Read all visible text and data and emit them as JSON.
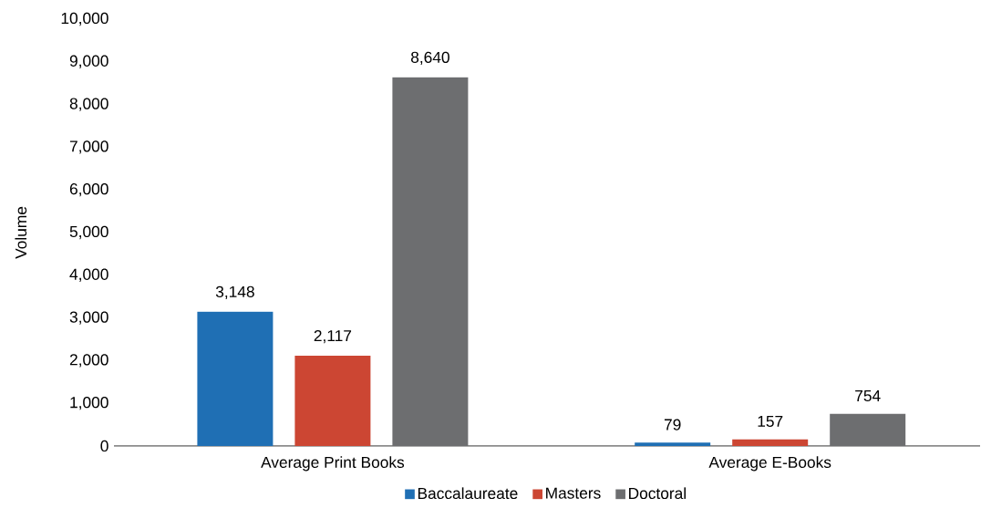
{
  "chart_data": {
    "type": "bar",
    "ylabel": "Volume",
    "categories": [
      "Average Print Books",
      "Average E-Books"
    ],
    "series": [
      {
        "name": "Baccalaureate",
        "color": "#1f6fb4",
        "values": [
          3148,
          79
        ],
        "value_labels": [
          "3,148",
          "79"
        ]
      },
      {
        "name": "Masters",
        "color": "#cc4633",
        "values": [
          2117,
          157
        ],
        "value_labels": [
          "2,117",
          "157"
        ]
      },
      {
        "name": "Doctoral",
        "color": "#6d6e70",
        "values": [
          8640,
          754
        ],
        "value_labels": [
          "8,640",
          "754"
        ]
      }
    ],
    "ylim": [
      0,
      10000
    ],
    "yticks": [
      {
        "value": 0,
        "label": "0"
      },
      {
        "value": 1000,
        "label": "1,000"
      },
      {
        "value": 2000,
        "label": "2,000"
      },
      {
        "value": 3000,
        "label": "3,000"
      },
      {
        "value": 4000,
        "label": "4,000"
      },
      {
        "value": 5000,
        "label": "5,000"
      },
      {
        "value": 6000,
        "label": "6,000"
      },
      {
        "value": 7000,
        "label": "7,000"
      },
      {
        "value": 8000,
        "label": "8,000"
      },
      {
        "value": 9000,
        "label": "9,000"
      },
      {
        "value": 10000,
        "label": "10,000"
      }
    ],
    "grid": false,
    "legend": "bottom"
  }
}
